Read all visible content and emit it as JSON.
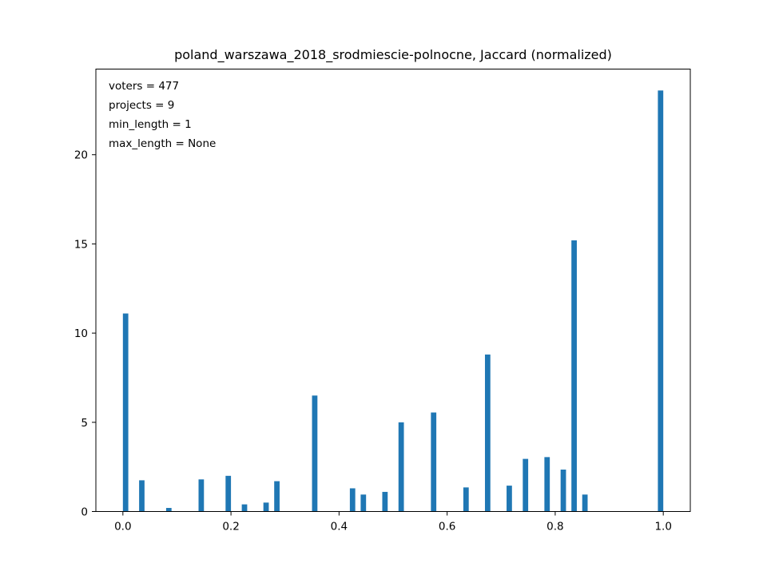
{
  "chart_data": {
    "type": "bar",
    "title": "poland_warszawa_2018_srodmiescie-polnocne, Jaccard (normalized)",
    "xlabel": "",
    "ylabel": "",
    "xlim": [
      -0.05,
      1.05
    ],
    "ylim": [
      0,
      24.8
    ],
    "bar_width": 0.01,
    "bar_color": "#1f77b4",
    "grid": false,
    "legend": "none",
    "x_ticks": [
      {
        "value": 0.0,
        "label": "0.0"
      },
      {
        "value": 0.2,
        "label": "0.2"
      },
      {
        "value": 0.4,
        "label": "0.4"
      },
      {
        "value": 0.6,
        "label": "0.6"
      },
      {
        "value": 0.8,
        "label": "0.8"
      },
      {
        "value": 1.0,
        "label": "1.0"
      }
    ],
    "y_ticks": [
      {
        "value": 0,
        "label": "0"
      },
      {
        "value": 5,
        "label": "5"
      },
      {
        "value": 10,
        "label": "10"
      },
      {
        "value": 15,
        "label": "15"
      },
      {
        "value": 20,
        "label": "20"
      }
    ],
    "x": [
      0.005,
      0.035,
      0.085,
      0.145,
      0.195,
      0.225,
      0.265,
      0.285,
      0.355,
      0.425,
      0.445,
      0.485,
      0.515,
      0.575,
      0.635,
      0.675,
      0.715,
      0.745,
      0.785,
      0.815,
      0.835,
      0.855,
      0.995
    ],
    "values": [
      11.1,
      1.75,
      0.2,
      1.8,
      2.0,
      0.4,
      0.5,
      1.7,
      6.5,
      1.3,
      0.95,
      1.1,
      5.0,
      5.55,
      1.35,
      8.8,
      1.45,
      2.95,
      3.05,
      2.35,
      15.2,
      0.95,
      23.6
    ],
    "annotation_lines": [
      "voters = 477",
      "projects = 9",
      "min_length = 1",
      "max_length = None"
    ]
  }
}
